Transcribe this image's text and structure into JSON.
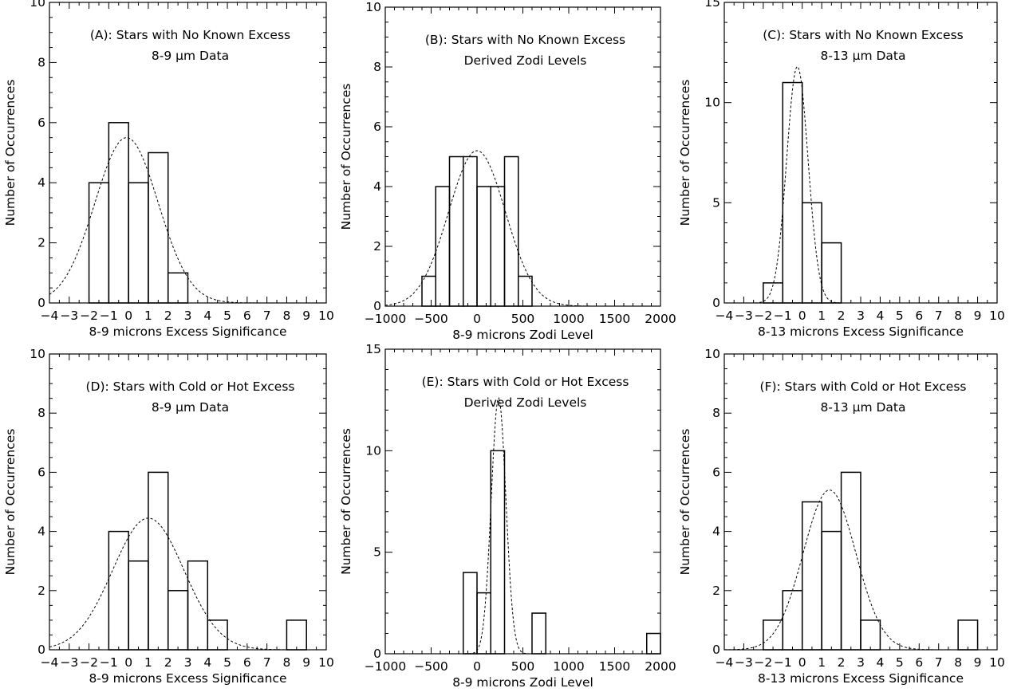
{
  "chart_data": [
    {
      "id": "A",
      "type": "bar",
      "title": "(A): Stars with No Known Excess",
      "subtitle": "8-9 μm Data",
      "xlabel": "8-9 microns Excess Significance",
      "ylabel": "Number of Occurrences",
      "xlim": [
        -4,
        10
      ],
      "ylim": [
        0,
        10
      ],
      "xticks": [
        -4,
        -3,
        -2,
        -1,
        0,
        1,
        2,
        3,
        4,
        5,
        6,
        7,
        8,
        9,
        10
      ],
      "xtick_labels": [
        "−4",
        "−3",
        "−2",
        "−1",
        "0",
        "1",
        "2",
        "3",
        "4",
        "5",
        "6",
        "7",
        "8",
        "9",
        "10"
      ],
      "yticks": [
        0,
        2,
        4,
        6,
        8,
        10
      ],
      "bins": [
        [
          -2,
          -1
        ],
        [
          -1,
          0
        ],
        [
          0,
          1
        ],
        [
          1,
          2
        ],
        [
          2,
          3
        ]
      ],
      "values": [
        4,
        6,
        4,
        5,
        1
      ],
      "fit": {
        "type": "gaussian",
        "peak": 5.5,
        "mean": -0.1,
        "sigma": 1.6
      },
      "grid": false
    },
    {
      "id": "B",
      "type": "bar",
      "title": "(B): Stars with No Known Excess",
      "subtitle": "Derived Zodi Levels",
      "xlabel": "8-9 microns Zodi Level",
      "ylabel": "Number of Occurrences",
      "xlim": [
        -1000,
        2000
      ],
      "ylim": [
        0,
        10
      ],
      "xticks": [
        -1000,
        -500,
        0,
        500,
        1000,
        1500,
        2000
      ],
      "xtick_labels": [
        "−1000",
        "−500",
        "0",
        "500",
        "1000",
        "1500",
        "2000"
      ],
      "yticks": [
        0,
        2,
        4,
        6,
        8,
        10
      ],
      "bins": [
        [
          -600,
          -450
        ],
        [
          -450,
          -300
        ],
        [
          -300,
          -150
        ],
        [
          -150,
          0
        ],
        [
          0,
          150
        ],
        [
          150,
          300
        ],
        [
          300,
          450
        ],
        [
          450,
          600
        ]
      ],
      "values": [
        1,
        4,
        5,
        5,
        4,
        4,
        5,
        1
      ],
      "fit": {
        "type": "gaussian",
        "peak": 5.2,
        "mean": 0,
        "sigma": 310
      },
      "grid": false
    },
    {
      "id": "C",
      "type": "bar",
      "title": "(C): Stars with No Known Excess",
      "subtitle": "8-13 μm Data",
      "xlabel": "8-13 microns Excess Significance",
      "ylabel": "Number of Occurrences",
      "xlim": [
        -4,
        10
      ],
      "ylim": [
        0,
        15
      ],
      "xticks": [
        -4,
        -3,
        -2,
        -1,
        0,
        1,
        2,
        3,
        4,
        5,
        6,
        7,
        8,
        9,
        10
      ],
      "xtick_labels": [
        "−4",
        "−3",
        "−2",
        "−1",
        "0",
        "1",
        "2",
        "3",
        "4",
        "5",
        "6",
        "7",
        "8",
        "9",
        "10"
      ],
      "yticks": [
        0,
        5,
        10,
        15
      ],
      "bins": [
        [
          -2,
          -1
        ],
        [
          -1,
          0
        ],
        [
          0,
          1
        ],
        [
          1,
          2
        ]
      ],
      "values": [
        1,
        11,
        5,
        3
      ],
      "fit": {
        "type": "gaussian",
        "peak": 11.8,
        "mean": -0.25,
        "sigma": 0.55
      },
      "grid": false
    },
    {
      "id": "D",
      "type": "bar",
      "title": "(D): Stars with Cold or Hot Excess",
      "subtitle": "8-9 μm Data",
      "xlabel": "8-9 microns Excess Significance",
      "ylabel": "Number of Occurrences",
      "xlim": [
        -4,
        10
      ],
      "ylim": [
        0,
        10
      ],
      "xticks": [
        -4,
        -3,
        -2,
        -1,
        0,
        1,
        2,
        3,
        4,
        5,
        6,
        7,
        8,
        9,
        10
      ],
      "xtick_labels": [
        "−4",
        "−3",
        "−2",
        "−1",
        "0",
        "1",
        "2",
        "3",
        "4",
        "5",
        "6",
        "7",
        "8",
        "9",
        "10"
      ],
      "yticks": [
        0,
        2,
        4,
        6,
        8,
        10
      ],
      "bins": [
        [
          -1,
          0
        ],
        [
          0,
          1
        ],
        [
          1,
          2
        ],
        [
          2,
          3
        ],
        [
          3,
          4
        ],
        [
          4,
          5
        ],
        [
          8,
          9
        ]
      ],
      "values": [
        4,
        3,
        6,
        2,
        3,
        1,
        1
      ],
      "fit": {
        "type": "gaussian",
        "peak": 4.45,
        "mean": 1.0,
        "sigma": 1.8
      },
      "grid": false
    },
    {
      "id": "E",
      "type": "bar",
      "title": "(E): Stars with Cold or Hot Excess",
      "subtitle": "Derived Zodi Levels",
      "xlabel": "8-9 microns Zodi Level",
      "ylabel": "Number of Occurrences",
      "xlim": [
        -1000,
        2000
      ],
      "ylim": [
        0,
        15
      ],
      "xticks": [
        -1000,
        -500,
        0,
        500,
        1000,
        1500,
        2000
      ],
      "xtick_labels": [
        "−1000",
        "−500",
        "0",
        "500",
        "1000",
        "1500",
        "2000"
      ],
      "yticks": [
        0,
        5,
        10,
        15
      ],
      "bins": [
        [
          -150,
          0
        ],
        [
          0,
          150
        ],
        [
          150,
          300
        ],
        [
          600,
          750
        ],
        [
          1850,
          2000
        ]
      ],
      "values": [
        4,
        3,
        10,
        2,
        1
      ],
      "fit": {
        "type": "gaussian",
        "peak": 12.6,
        "mean": 235,
        "sigma": 80
      },
      "grid": false
    },
    {
      "id": "F",
      "type": "bar",
      "title": "(F): Stars with Cold or Hot Excess",
      "subtitle": "8-13 μm Data",
      "xlabel": "8-13 microns Excess Significance",
      "ylabel": "Number of Occurrences",
      "xlim": [
        -4,
        10
      ],
      "ylim": [
        0,
        10
      ],
      "xticks": [
        -4,
        -3,
        -2,
        -1,
        0,
        1,
        2,
        3,
        4,
        5,
        6,
        7,
        8,
        9,
        10
      ],
      "xtick_labels": [
        "−4",
        "−3",
        "−2",
        "−1",
        "0",
        "1",
        "2",
        "3",
        "4",
        "5",
        "6",
        "7",
        "8",
        "9",
        "10"
      ],
      "yticks": [
        0,
        2,
        4,
        6,
        8,
        10
      ],
      "bins": [
        [
          -2,
          -1
        ],
        [
          -1,
          0
        ],
        [
          0,
          1
        ],
        [
          1,
          2
        ],
        [
          2,
          3
        ],
        [
          3,
          4
        ],
        [
          8,
          9
        ]
      ],
      "values": [
        1,
        2,
        5,
        4,
        6,
        1,
        1
      ],
      "fit": {
        "type": "gaussian",
        "peak": 5.4,
        "mean": 1.4,
        "sigma": 1.35
      },
      "grid": false
    }
  ]
}
